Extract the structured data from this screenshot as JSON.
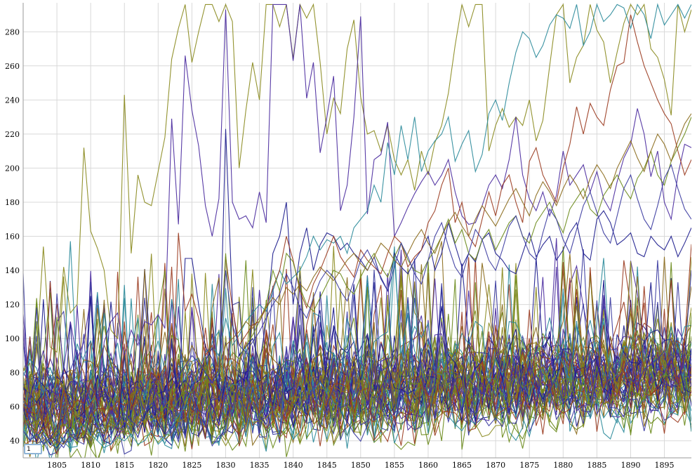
{
  "chart_data": {
    "type": "line",
    "title": "",
    "xlabel": "",
    "ylabel": "",
    "xlim": [
      1800,
      1899
    ],
    "ylim": [
      30,
      297
    ],
    "x_ticks": [
      "1805",
      "1810",
      "1815",
      "1820",
      "1825",
      "1830",
      "1835",
      "1840",
      "1845",
      "1850",
      "1855",
      "1860",
      "1865",
      "1870",
      "1875",
      "1880",
      "1885",
      "1890",
      "1895"
    ],
    "y_ticks": [
      "40",
      "60",
      "80",
      "100",
      "120",
      "140",
      "160",
      "180",
      "200",
      "220",
      "240",
      "260",
      "280"
    ],
    "grid": true,
    "legend": "none",
    "roll_period_value": "1",
    "palette": [
      "#8a8a1e",
      "#4a2a9e",
      "#1a1a8c",
      "#2a8a9a",
      "#9a3a1e",
      "#6a8a1a",
      "#8a6a1a",
      "#3a3aa0"
    ],
    "series": [
      {
        "x_start": 1800,
        "values": [
          75,
          66,
          92,
          154,
          95,
          92,
          142,
          115,
          120,
          212,
          163,
          153,
          140,
          105,
          100,
          243,
          150,
          196,
          180,
          178,
          198,
          218,
          264,
          282,
          296,
          262,
          280,
          296,
          296,
          286,
          296,
          286,
          200,
          234,
          262,
          240,
          296,
          296,
          283,
          296,
          264,
          296,
          288,
          296,
          262,
          220,
          241,
          232,
          270,
          287,
          242,
          220,
          222,
          210,
          225,
          205,
          196,
          205,
          187,
          210,
          196,
          215,
          225,
          244,
          272,
          296,
          283,
          296,
          296,
          210,
          225,
          235,
          224,
          230,
          225,
          240,
          216,
          228,
          260,
          290,
          296,
          250,
          265,
          272,
          296,
          281,
          274,
          250,
          268,
          285,
          296,
          290,
          296,
          270,
          265,
          252,
          231,
          296,
          280,
          293
        ]
      },
      {
        "x_start": 1800,
        "values": [
          103,
          65,
          78,
          93,
          70,
          67,
          82,
          110,
          88,
          98,
          124,
          60,
          98,
          110,
          115,
          90,
          105,
          96,
          110,
          108,
          114,
          106,
          229,
          167,
          266,
          234,
          213,
          178,
          160,
          182,
          293,
          180,
          170,
          172,
          165,
          186,
          168,
          296,
          296,
          296,
          263,
          296,
          241,
          262,
          209,
          230,
          254,
          175,
          190,
          230,
          289,
          173,
          205,
          208,
          227,
          160,
          168,
          177,
          185,
          192,
          198,
          190,
          196,
          205,
          186,
          172,
          167,
          168,
          178,
          190,
          196,
          188,
          205,
          230,
          196,
          182,
          175,
          186,
          172,
          184,
          210,
          190,
          196,
          202,
          186,
          198,
          182,
          175,
          192,
          206,
          214,
          235,
          220,
          195,
          210,
          180,
          170,
          196,
          214,
          212
        ]
      },
      {
        "x_start": 1800,
        "values": [
          60,
          45,
          40,
          50,
          38,
          36,
          42,
          48,
          40,
          52,
          125,
          55,
          40,
          38,
          45,
          90,
          50,
          42,
          55,
          60,
          50,
          44,
          100,
          60,
          147,
          147,
          120,
          95,
          88,
          70,
          223,
          120,
          90,
          95,
          100,
          85,
          110,
          150,
          160,
          180,
          120,
          150,
          165,
          140,
          155,
          162,
          160,
          152,
          156,
          150,
          146,
          140,
          148,
          135,
          128,
          150,
          142,
          138,
          146,
          152,
          160,
          140,
          150,
          168,
          155,
          142,
          150,
          145,
          158,
          162,
          150,
          146,
          140,
          138,
          150,
          162,
          148,
          155,
          160,
          146,
          152,
          162,
          168,
          150,
          146,
          170,
          175,
          168,
          155,
          158,
          162,
          150,
          148,
          160,
          155,
          152,
          160,
          148,
          156,
          165
        ]
      },
      {
        "x_start": 1800,
        "values": [
          48,
          40,
          45,
          38,
          40,
          35,
          42,
          38,
          46,
          50,
          44,
          40,
          36,
          38,
          42,
          40,
          44,
          38,
          40,
          46,
          38,
          42,
          48,
          55,
          60,
          72,
          80,
          92,
          95,
          90,
          112,
          96,
          102,
          110,
          115,
          120,
          116,
          128,
          140,
          132,
          136,
          140,
          148,
          160,
          152,
          158,
          156,
          160,
          150,
          165,
          170,
          175,
          190,
          180,
          215,
          196,
          225,
          205,
          230,
          198,
          210,
          216,
          220,
          230,
          204,
          214,
          222,
          198,
          208,
          232,
          240,
          228,
          250,
          268,
          280,
          276,
          265,
          272,
          284,
          290,
          288,
          282,
          296,
          272,
          280,
          296,
          286,
          290,
          296,
          294,
          282,
          296,
          290,
          276,
          296,
          284,
          290,
          296,
          288,
          296
        ]
      },
      {
        "x_start": 1800,
        "values": [
          62,
          50,
          44,
          48,
          40,
          46,
          70,
          58,
          64,
          62,
          76,
          62,
          52,
          60,
          54,
          110,
          58,
          68,
          72,
          80,
          76,
          84,
          60,
          162,
          116,
          126,
          112,
          90,
          96,
          80,
          148,
          118,
          96,
          102,
          108,
          110,
          118,
          130,
          140,
          160,
          146,
          128,
          118,
          132,
          140,
          150,
          160,
          148,
          142,
          136,
          152,
          146,
          142,
          138,
          150,
          160,
          156,
          142,
          148,
          152,
          168,
          175,
          190,
          200,
          168,
          180,
          160,
          154,
          170,
          186,
          172,
          190,
          196,
          180,
          168,
          204,
          212,
          196,
          188,
          180,
          200,
          214,
          236,
          220,
          238,
          230,
          225,
          246,
          260,
          262,
          290,
          274,
          260,
          250,
          240,
          232,
          226,
          210,
          196,
          205
        ]
      },
      {
        "x_start": 1800,
        "values": [
          55,
          48,
          42,
          46,
          40,
          44,
          50,
          46,
          52,
          48,
          55,
          50,
          46,
          52,
          48,
          56,
          50,
          54,
          58,
          52,
          56,
          60,
          58,
          64,
          70,
          68,
          74,
          78,
          72,
          80,
          150,
          92,
          88,
          96,
          102,
          110,
          120,
          140,
          128,
          150,
          145,
          130,
          120,
          116,
          124,
          132,
          140,
          138,
          130,
          126,
          136,
          144,
          150,
          142,
          136,
          148,
          156,
          146,
          140,
          138,
          146,
          152,
          160,
          170,
          156,
          164,
          150,
          146,
          158,
          164,
          152,
          160,
          168,
          172,
          160,
          156,
          168,
          174,
          180,
          170,
          162,
          176,
          182,
          188,
          176,
          172,
          184,
          190,
          196,
          188,
          182,
          194,
          200,
          210,
          196,
          190,
          204,
          212,
          220,
          230
        ]
      },
      {
        "x_start": 1800,
        "values": [
          40,
          36,
          38,
          42,
          36,
          40,
          38,
          44,
          40,
          46,
          42,
          48,
          44,
          50,
          46,
          52,
          48,
          54,
          50,
          56,
          52,
          60,
          66,
          72,
          84,
          96,
          88,
          80,
          76,
          84,
          96,
          100,
          104,
          110,
          106,
          112,
          118,
          124,
          120,
          130,
          126,
          132,
          128,
          136,
          142,
          138,
          134,
          140,
          146,
          150,
          144,
          140,
          148,
          156,
          152,
          146,
          142,
          150,
          158,
          164,
          156,
          150,
          160,
          168,
          174,
          166,
          160,
          170,
          178,
          172,
          166,
          174,
          182,
          188,
          180,
          172,
          184,
          192,
          186,
          178,
          188,
          196,
          190,
          182,
          194,
          202,
          196,
          188,
          200,
          208,
          216,
          206,
          198,
          210,
          220,
          214,
          204,
          216,
          226,
          232
        ]
      },
      {
        "x_start": 1800,
        "values": [
          46,
          40,
          44,
          38,
          42,
          40,
          36,
          44,
          40,
          38,
          60,
          48,
          40,
          44,
          50,
          56,
          52,
          48,
          56,
          62,
          58,
          66,
          72,
          78,
          84,
          90,
          86,
          80,
          74,
          82,
          140,
          108,
          96,
          92,
          98,
          104,
          112,
          120,
          126,
          138,
          130,
          118,
          112,
          124,
          134,
          140,
          136,
          128,
          122,
          134,
          146,
          152,
          144,
          136,
          128,
          142,
          156,
          148,
          138,
          132,
          146,
          160,
          168,
          154,
          142,
          136,
          150,
          164,
          158,
          146,
          140,
          152,
          166,
          172,
          160,
          150,
          146,
          162,
          176,
          170,
          158,
          150,
          164,
          178,
          186,
          174,
          162,
          156,
          172,
          188,
          196,
          182,
          170,
          164,
          178,
          194,
          202,
          188,
          176,
          170
        ]
      }
    ],
    "dense_noise_series_count": 64,
    "dense_noise_range": [
      30,
      120
    ]
  }
}
